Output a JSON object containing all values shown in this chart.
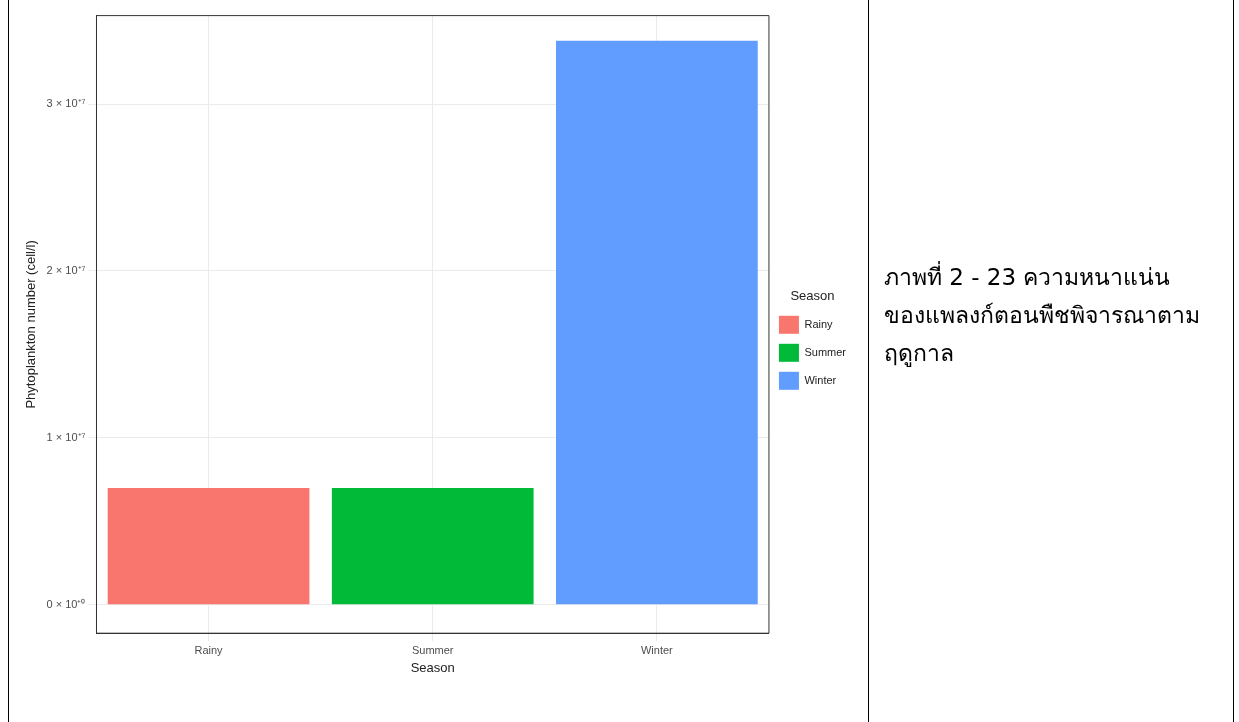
{
  "chart_data": {
    "type": "bar",
    "categories": [
      "Rainy",
      "Summer",
      "Winter"
    ],
    "series": [
      {
        "name": "Rainy",
        "color": "#f8766d",
        "values": [
          7000000.0,
          null,
          null
        ]
      },
      {
        "name": "Summer",
        "color": "#00ba38",
        "values": [
          null,
          7000000.0,
          null
        ]
      },
      {
        "name": "Winter",
        "color": "#619cff",
        "values": [
          null,
          null,
          33800000.0
        ]
      }
    ],
    "xlabel": "Season",
    "ylabel": "Phytoplankton number (cell/l)",
    "legend_title": "Season",
    "legend": "right",
    "ylim": [
      -1700000.0,
      35300000.0
    ],
    "yticks": [
      {
        "value": 0,
        "label": "0 × 10⁺⁰"
      },
      {
        "value": 10000000.0,
        "label": "1 × 10⁺⁷"
      },
      {
        "value": 20000000.0,
        "label": "2 × 10⁺⁷"
      },
      {
        "value": 30000000.0,
        "label": "3 × 10⁺⁷"
      }
    ],
    "grid": true,
    "annotations": [
      "ภาพที่ 2 - 23  ความหนาแน่นของแพลงก์ตอนพืชพิจารณาตามฤดูกาล"
    ]
  }
}
